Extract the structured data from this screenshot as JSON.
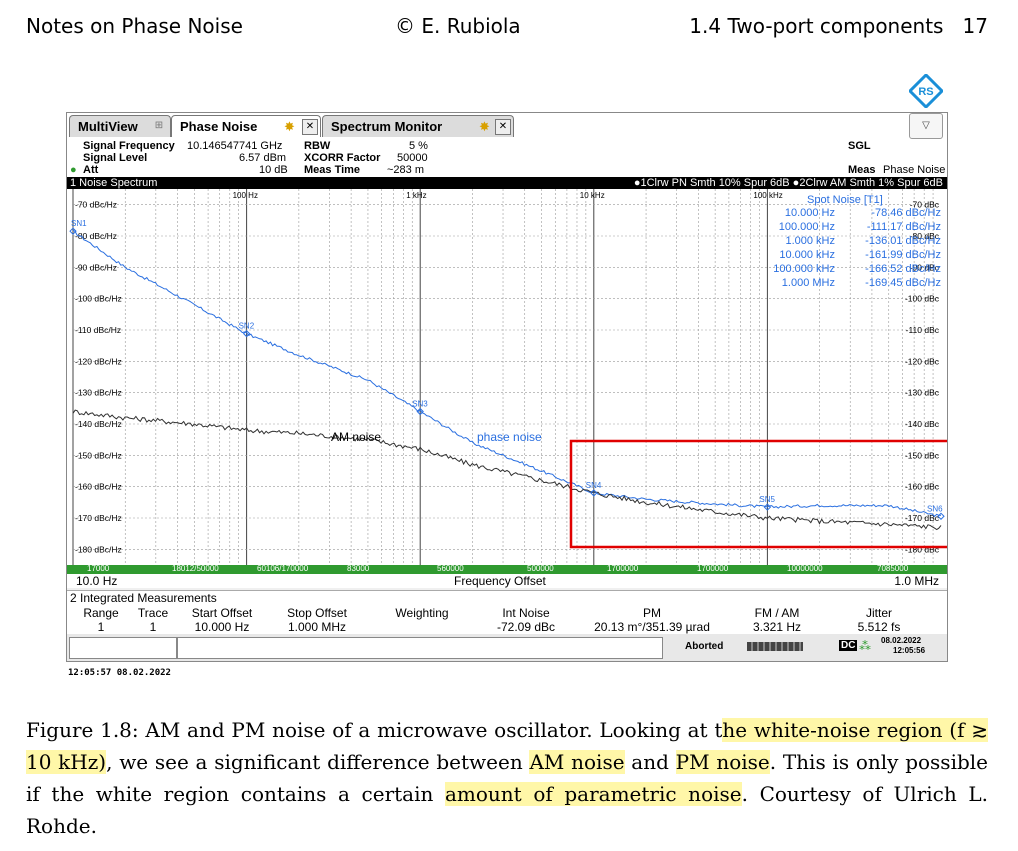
{
  "page_header": {
    "left": "Notes on Phase Noise",
    "center": "© E. Rubiola",
    "right_section": "1.4 Two-port components",
    "right_page": "17"
  },
  "tabs": [
    {
      "label": "MultiView"
    },
    {
      "label": "Phase Noise"
    },
    {
      "label": "Spectrum Monitor"
    }
  ],
  "settings": {
    "signal_frequency_label": "Signal Frequency",
    "signal_frequency_value": "10.146547741 GHz",
    "signal_level_label": "Signal Level",
    "signal_level_value": "6.57 dBm",
    "att_label": "Att",
    "att_value": "10 dB",
    "rbw_label": "RBW",
    "rbw_value": "5 %",
    "xcorr_label": "XCORR Factor",
    "xcorr_value": "50000",
    "meas_time_label": "Meas Time",
    "meas_time_value": "~283 m",
    "sgl": "SGL",
    "meas_label": "Meas",
    "meas_value": "Phase Noise"
  },
  "window": {
    "title": "1 Noise Spectrum",
    "traces_info": "●1Clrw PN Smth 10% Spur 6dB  ●2Clrw AM Smth 1% Spur 6dB"
  },
  "plot": {
    "decade_labels": [
      "100 Hz",
      "1 kHz",
      "10 kHz",
      "100 kHz"
    ],
    "y_left_labels": [
      "-70 dBc/Hz",
      "-80 dBc/Hz",
      "-90 dBc/Hz",
      "-100 dBc/Hz",
      "-110 dBc/Hz",
      "-120 dBc/Hz",
      "-130 dBc/Hz",
      "-140 dBc/Hz",
      "-150 dBc/Hz",
      "-160 dBc/Hz",
      "-170 dBc/Hz",
      "-180 dBc/Hz"
    ],
    "y_right_labels": [
      "-70 dBc",
      "-80 dBc",
      "-90 dBc",
      "-100 dBc",
      "-110 dBc",
      "-120 dBc",
      "-130 dBc",
      "-140 dBc",
      "-150 dBc",
      "-160 dBc",
      "-170 dBc",
      "-180 dBc"
    ],
    "markers": [
      "SN1",
      "SN2",
      "SN3",
      "SN4",
      "SN5",
      "SN6"
    ],
    "am_label": "AM noise",
    "pm_label": "phase noise",
    "spot_noise_title": "Spot Noise [T1]",
    "spot_noise": [
      {
        "offset": "10.000 Hz",
        "value": "-78.46 dBc/Hz"
      },
      {
        "offset": "100.000 Hz",
        "value": "-111.17 dBc/Hz"
      },
      {
        "offset": "1.000 kHz",
        "value": "-136.01 dBc/Hz"
      },
      {
        "offset": "10.000 kHz",
        "value": "-161.99 dBc/Hz"
      },
      {
        "offset": "100.000 kHz",
        "value": "-166.52 dBc/Hz"
      },
      {
        "offset": "1.000 MHz",
        "value": "-169.45 dBc/Hz"
      }
    ],
    "highlight_color": "#e00000",
    "pm_color": "#2a6fe0",
    "am_color": "#303030"
  },
  "green_bar_labels": [
    "17000",
    "18012/50000",
    "60106/170000",
    "83000",
    "560000",
    "500000",
    "1700000",
    "1700000",
    "10000000",
    "7085000"
  ],
  "x_axis": {
    "start": "10.0 Hz",
    "label": "Frequency Offset",
    "stop": "1.0 MHz"
  },
  "integrated": {
    "title": "2 Integrated Measurements",
    "headers": [
      "Range",
      "Trace",
      "Start Offset",
      "Stop Offset",
      "Weighting",
      "Int Noise",
      "PM",
      "FM / AM",
      "Jitter"
    ],
    "row": [
      "1",
      "1",
      "10.000 Hz",
      "1.000 MHz",
      "",
      "-72.09 dBc",
      "20.13 m°/351.39 µrad",
      "3.321 Hz",
      "5.512 fs"
    ]
  },
  "status": {
    "state": "Aborted",
    "dc": "DC",
    "date": "08.02.2022",
    "time": "12:05:56"
  },
  "timestamp": "12:05:57  08.02.2022",
  "caption": {
    "p1": "Figure 1.8: AM and PM noise of a microwave oscillator. Looking at t",
    "h1": "he white-noise region (f ≳ 10 kHz)",
    "p2": ", we see a significant difference between ",
    "h2": "AM noise",
    "p3": " and ",
    "h3": "PM noise",
    "p4": ". This is only possible if the white region contains a certain ",
    "h4": "amount of parametric noise",
    "p5": ". Courtesy of Ulrich L. Rohde."
  },
  "chart_data": {
    "type": "line",
    "title": "1 Noise Spectrum",
    "xlabel": "Frequency Offset",
    "x_scale": "log",
    "xlim": [
      10,
      1000000
    ],
    "ylim": [
      -185,
      -65
    ],
    "grid": true,
    "series": [
      {
        "name": "phase noise",
        "x": [
          10,
          20,
          50,
          100,
          200,
          500,
          1000,
          2000,
          5000,
          10000,
          20000,
          50000,
          100000,
          200000,
          500000,
          1000000
        ],
        "values": [
          -78.5,
          -90,
          -102,
          -111.2,
          -118,
          -126,
          -136.0,
          -146,
          -155,
          -162.0,
          -164,
          -165.5,
          -166.5,
          -166,
          -166,
          -169.5
        ]
      },
      {
        "name": "AM noise",
        "x": [
          10,
          20,
          50,
          100,
          200,
          500,
          1000,
          2000,
          5000,
          10000,
          20000,
          50000,
          100000,
          200000,
          500000,
          1000000
        ],
        "values": [
          -136,
          -138,
          -140,
          -142,
          -143,
          -145,
          -148,
          -153,
          -158,
          -162,
          -165,
          -168,
          -170,
          -171,
          -172,
          -173
        ]
      }
    ],
    "markers": [
      {
        "name": "SN1",
        "x": 10,
        "y": -78.46
      },
      {
        "name": "SN2",
        "x": 100,
        "y": -111.17
      },
      {
        "name": "SN3",
        "x": 1000,
        "y": -136.01
      },
      {
        "name": "SN4",
        "x": 10000,
        "y": -161.99
      },
      {
        "name": "SN5",
        "x": 100000,
        "y": -166.52
      },
      {
        "name": "SN6",
        "x": 1000000,
        "y": -169.45
      }
    ]
  }
}
